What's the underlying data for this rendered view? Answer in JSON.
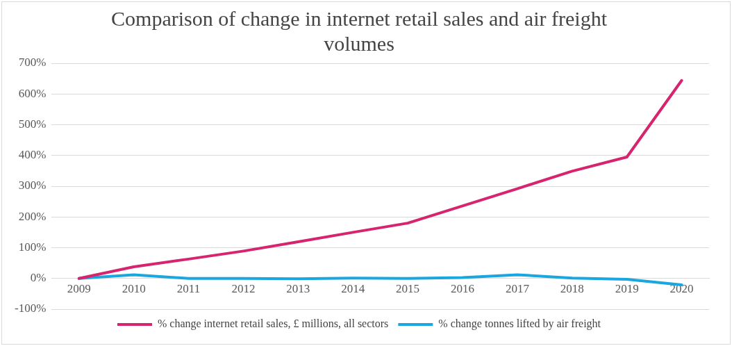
{
  "chart_data": {
    "type": "line",
    "title": "Comparison of change in internet retail sales and air freight volumes",
    "categories": [
      "2009",
      "2010",
      "2011",
      "2012",
      "2013",
      "2014",
      "2015",
      "2016",
      "2017",
      "2018",
      "2019",
      "2020"
    ],
    "series": [
      {
        "name": "% change internet retail sales, £ millions, all sectors",
        "color": "#d6246e",
        "values": [
          0,
          38,
          63,
          89,
          119,
          150,
          180,
          236,
          292,
          349,
          395,
          644
        ]
      },
      {
        "name": "% change tonnes lifted by air freight",
        "color": "#1aa7e0",
        "values": [
          0,
          12,
          0,
          0,
          -1,
          1,
          0,
          3,
          12,
          1,
          -3,
          -21
        ]
      }
    ],
    "ylim": [
      -100,
      700
    ],
    "yticks": [
      {
        "value": -100,
        "label": "-100%"
      },
      {
        "value": 0,
        "label": "0%"
      },
      {
        "value": 100,
        "label": "100%"
      },
      {
        "value": 200,
        "label": "200%"
      },
      {
        "value": 300,
        "label": "300%"
      },
      {
        "value": 400,
        "label": "400%"
      },
      {
        "value": 500,
        "label": "500%"
      },
      {
        "value": 600,
        "label": "600%"
      },
      {
        "value": 700,
        "label": "700%"
      }
    ],
    "grid": "y",
    "legend": "bottom",
    "marker": "none",
    "line_style": "solid"
  }
}
